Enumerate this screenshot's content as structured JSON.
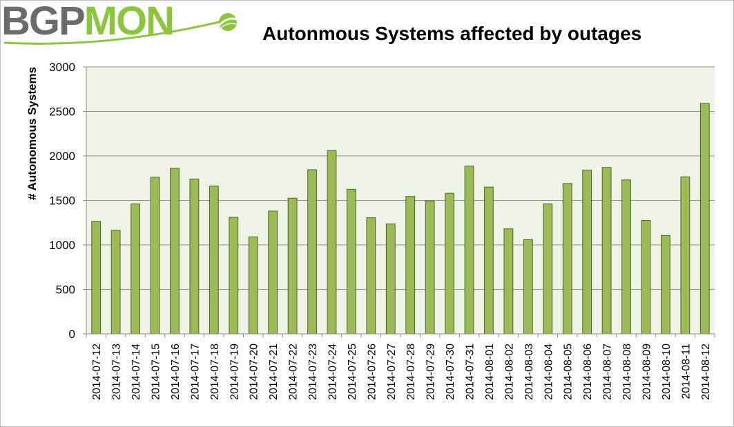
{
  "logo": {
    "part1": "BGP",
    "part2": "MON"
  },
  "chart_data": {
    "type": "bar",
    "title": "Autonmous Systems affected by outages",
    "xlabel": "",
    "ylabel": "# Autonomous Systems",
    "ylim": [
      0,
      3000
    ],
    "yticks": [
      0,
      500,
      1000,
      1500,
      2000,
      2500,
      3000
    ],
    "grid": true,
    "legend": "none",
    "bar_color": "#9bbb59",
    "bar_edge": "#4f6228",
    "plot_bg": "#eef3e6",
    "categories": [
      "2014-07-12",
      "2014-07-13",
      "2014-07-14",
      "2014-07-15",
      "2014-07-16",
      "2014-07-17",
      "2014-07-18",
      "2014-07-19",
      "2014-07-20",
      "2014-07-21",
      "2014-07-22",
      "2014-07-23",
      "2014-07-24",
      "2014-07-25",
      "2014-07-26",
      "2014-07-27",
      "2014-07-28",
      "2014-07-29",
      "2014-07-30",
      "2014-07-31",
      "2014-08-01",
      "2014-08-02",
      "2014-08-03",
      "2014-08-04",
      "2014-08-05",
      "2014-08-06",
      "2014-08-07",
      "2014-08-08",
      "2014-08-09",
      "2014-08-10",
      "2014-08-11",
      "2014-08-12"
    ],
    "values": [
      1265,
      1165,
      1460,
      1760,
      1860,
      1740,
      1660,
      1310,
      1090,
      1380,
      1525,
      1845,
      2060,
      1625,
      1305,
      1235,
      1545,
      1495,
      1580,
      1885,
      1650,
      1180,
      1060,
      1460,
      1690,
      1840,
      1870,
      1730,
      1275,
      1105,
      1765,
      2590
    ]
  }
}
